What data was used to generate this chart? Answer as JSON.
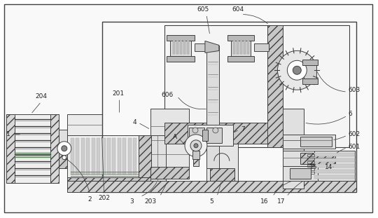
{
  "bg": "#ffffff",
  "bc": "#404040",
  "lc": "#606060",
  "gc": "#d0d0d0",
  "hc": "#909090",
  "green_line": "#5a8a5a",
  "blue_gray": "#8899aa"
}
